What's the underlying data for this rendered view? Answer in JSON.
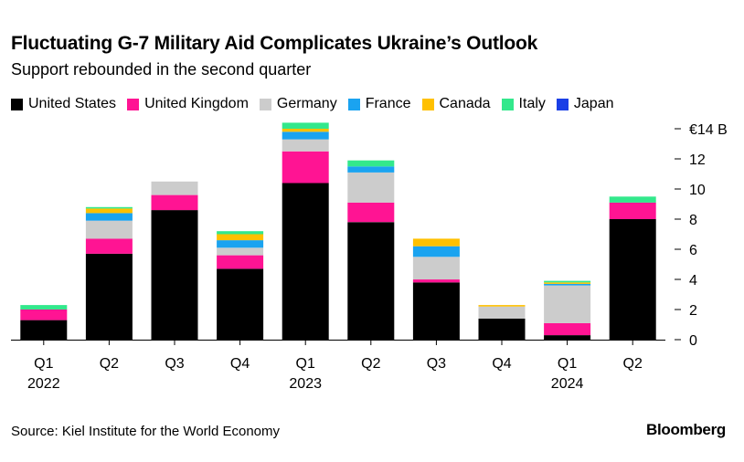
{
  "chart_data": {
    "type": "bar",
    "stacked": true,
    "title": "Fluctuating G-7 Military Aid Complicates Ukraine’s Outlook",
    "subtitle": "Support rebounded in the second quarter",
    "categories": [
      "Q1",
      "Q2",
      "Q3",
      "Q4",
      "Q1",
      "Q2",
      "Q3",
      "Q4",
      "Q1",
      "Q2"
    ],
    "year_labels": [
      "2022",
      "",
      "",
      "",
      "2023",
      "",
      "",
      "",
      "2024",
      ""
    ],
    "ylim": [
      0,
      14
    ],
    "yticks": [
      0,
      2,
      4,
      6,
      8,
      10,
      12,
      14
    ],
    "ytick_labels": [
      "0",
      "2",
      "4",
      "6",
      "8",
      "10",
      "12",
      "€14 B"
    ],
    "grid": false,
    "legend_position": "top-left",
    "series": [
      {
        "name": "United States",
        "color": "#000000",
        "values": [
          1.3,
          5.7,
          8.6,
          4.7,
          10.4,
          7.8,
          3.8,
          1.4,
          0.3,
          8.0
        ]
      },
      {
        "name": "United Kingdom",
        "color": "#ff1493",
        "values": [
          0.7,
          1.0,
          1.0,
          0.9,
          2.1,
          1.3,
          0.2,
          0.0,
          0.8,
          1.1
        ]
      },
      {
        "name": "Germany",
        "color": "#cccccc",
        "values": [
          0.0,
          1.2,
          0.9,
          0.5,
          0.8,
          2.0,
          1.5,
          0.8,
          2.5,
          0.0
        ]
      },
      {
        "name": "France",
        "color": "#1aa3f0",
        "values": [
          0.0,
          0.5,
          0.0,
          0.5,
          0.5,
          0.4,
          0.7,
          0.0,
          0.1,
          0.0
        ]
      },
      {
        "name": "Canada",
        "color": "#ffc000",
        "values": [
          0.0,
          0.3,
          0.0,
          0.4,
          0.2,
          0.0,
          0.5,
          0.1,
          0.1,
          0.0
        ]
      },
      {
        "name": "Italy",
        "color": "#33e88c",
        "values": [
          0.3,
          0.1,
          0.0,
          0.2,
          0.4,
          0.4,
          0.0,
          0.0,
          0.1,
          0.4
        ]
      },
      {
        "name": "Japan",
        "color": "#1a3fe6",
        "values": [
          0.0,
          0.0,
          0.0,
          0.0,
          0.0,
          0.0,
          0.0,
          0.0,
          0.0,
          0.0
        ]
      }
    ]
  },
  "source": "Source: Kiel Institute for the World Economy",
  "brand": "Bloomberg"
}
